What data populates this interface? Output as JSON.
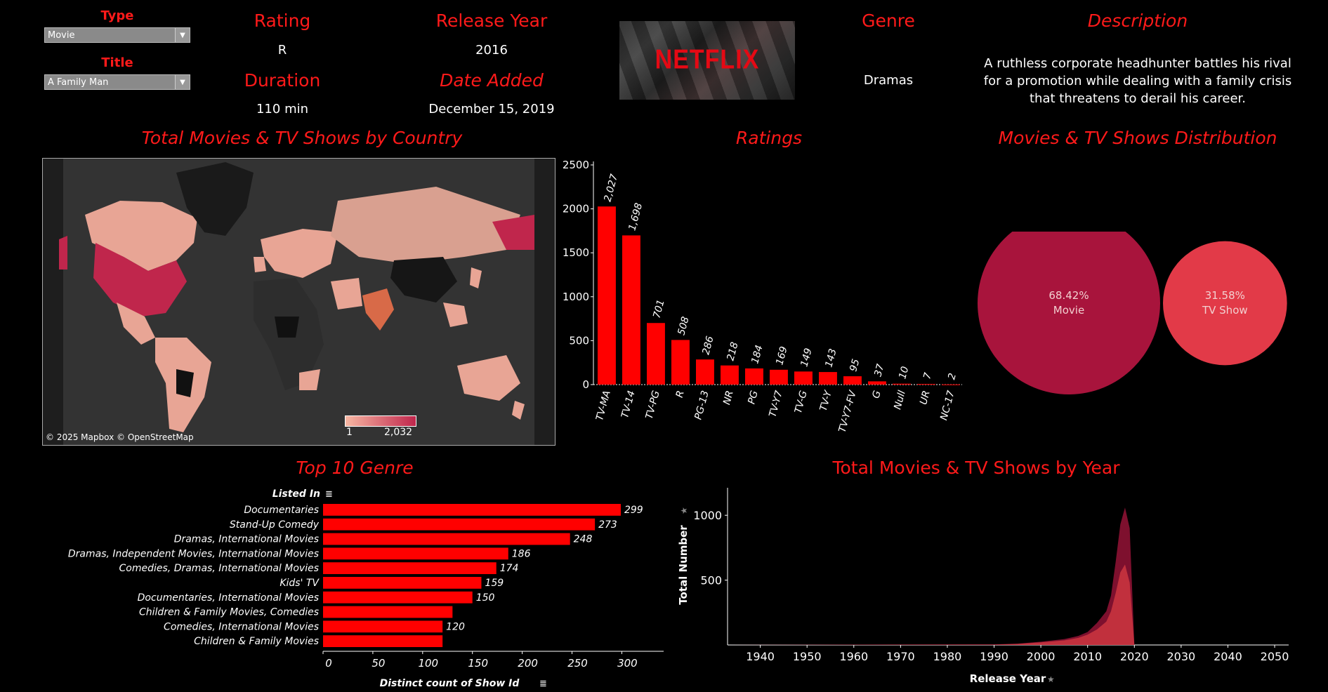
{
  "filters": {
    "type_label": "Type",
    "type_value": "Movie",
    "title_label": "Title",
    "title_value": "A Family Man"
  },
  "details": {
    "rating_label": "Rating",
    "rating_value": "R",
    "duration_label": "Duration",
    "duration_value": "110 min",
    "release_label": "Release Year",
    "release_value": "2016",
    "date_label": "Date Added",
    "date_value": "December 15, 2019",
    "genre_label": "Genre",
    "genre_value": "Dramas",
    "description_label": "Description",
    "description_value": "A ruthless corporate headhunter battles his rival for a promotion while dealing with a family crisis that threatens to derail his career."
  },
  "logo": {
    "text": "NETFLIX"
  },
  "map": {
    "title": "Total Movies & TV Shows by Country",
    "attribution": "© 2025 Mapbox © OpenStreetMap",
    "legend_min": "1",
    "legend_max": "2,032",
    "colors": {
      "low": "#f7b7a3",
      "high": "#c0264c"
    }
  },
  "dist": {
    "title": "Movies & TV Shows Distribution"
  },
  "genre_chart": {
    "title": "Top 10 Genre"
  },
  "year_chart": {
    "title": "Total Movies & TV Shows by Year"
  },
  "colors": {
    "accent": "#ff1a1a",
    "bar": "#ff0000",
    "background": "#000000"
  },
  "chart_data": [
    {
      "type": "bar",
      "title": "Ratings",
      "categories": [
        "TV-MA",
        "TV-14",
        "TV-PG",
        "R",
        "PG-13",
        "NR",
        "PG",
        "TV-Y7",
        "TV-G",
        "TV-Y",
        "TV-Y7-FV",
        "G",
        "Null",
        "UR",
        "NC-17"
      ],
      "values": [
        2027,
        1698,
        701,
        508,
        286,
        218,
        184,
        169,
        149,
        143,
        95,
        37,
        10,
        7,
        2
      ],
      "labels": [
        "2,027",
        "1,698",
        "701",
        "508",
        "286",
        "218",
        "184",
        "169",
        "149",
        "143",
        "95",
        "37",
        "10",
        "7",
        "2"
      ],
      "ylim": [
        0,
        2500
      ],
      "yticks": [
        0,
        500,
        1000,
        1500,
        2000,
        2500
      ]
    },
    {
      "type": "pie",
      "title": "Movies & TV Shows Distribution",
      "categories": [
        "Movie",
        "TV Show"
      ],
      "values": [
        68.42,
        31.58
      ],
      "labels": [
        "68.42%",
        "31.58%"
      ],
      "colors": [
        "#a8143c",
        "#e23a48"
      ]
    },
    {
      "type": "bar",
      "title": "Top 10 Genre",
      "xlabel": "Distinct count of Show Id",
      "ylabel": "Listed In",
      "categories": [
        "Documentaries",
        "Stand-Up Comedy",
        "Dramas, International Movies",
        "Dramas, Independent Movies, International Movies",
        "Comedies, Dramas, International Movies",
        "Kids' TV",
        "Documentaries, International Movies",
        "Children & Family Movies, Comedies",
        "Comedies, International Movies",
        "Children & Family Movies"
      ],
      "values": [
        299,
        273,
        248,
        186,
        174,
        159,
        150,
        130,
        120,
        120
      ],
      "labels": [
        "299",
        "273",
        "248",
        "186",
        "174",
        "159",
        "150",
        "",
        "120",
        ""
      ],
      "xlim": [
        0,
        340
      ],
      "xticks": [
        0,
        50,
        100,
        150,
        200,
        250,
        300
      ]
    },
    {
      "type": "area",
      "title": "Total Movies & TV Shows by Year",
      "xlabel": "Release Year",
      "ylabel": "Total Number",
      "xlim": [
        1933,
        2053
      ],
      "ylim": [
        0,
        1200
      ],
      "xticks": [
        1940,
        1950,
        1960,
        1970,
        1980,
        1990,
        2000,
        2010,
        2020,
        2030,
        2040,
        2050
      ],
      "yticks": [
        500,
        1000
      ],
      "x": [
        1925,
        1990,
        1995,
        2000,
        2005,
        2008,
        2010,
        2012,
        2014,
        2015,
        2016,
        2017,
        2018,
        2019,
        2020,
        2021
      ],
      "series": [
        {
          "values": [
            0,
            5,
            10,
            25,
            45,
            70,
            100,
            170,
            260,
            380,
            640,
            930,
            1060,
            900,
            0,
            0
          ],
          "color": "#8c1233"
        },
        {
          "values": [
            0,
            3,
            8,
            20,
            35,
            55,
            80,
            120,
            180,
            260,
            400,
            560,
            620,
            480,
            0,
            0
          ],
          "color": "#c9343f"
        }
      ]
    }
  ]
}
